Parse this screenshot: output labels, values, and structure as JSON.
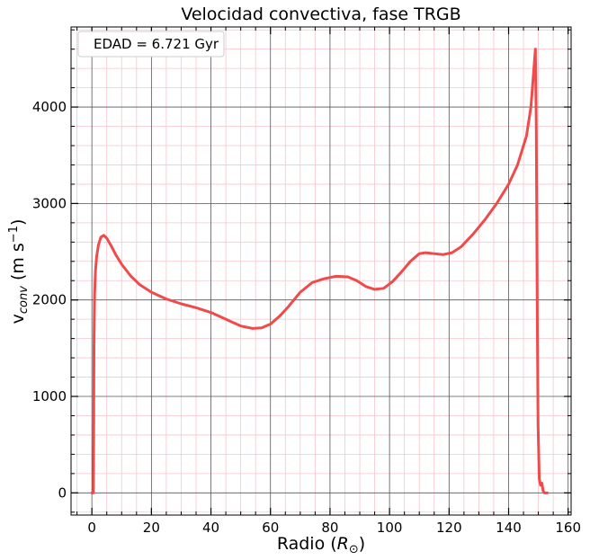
{
  "chart_data": {
    "type": "line",
    "title": "Velocidad convectiva, fase TRGB",
    "xlabel": "Radio (R⊙)",
    "ylabel": "v_conv (m s⁻¹)",
    "xlim": [
      -7,
      161
    ],
    "ylim": [
      -230,
      4830
    ],
    "xticks": [
      0,
      20,
      40,
      60,
      80,
      100,
      120,
      140,
      160
    ],
    "yticks": [
      0,
      1000,
      2000,
      3000,
      4000
    ],
    "grid": "major and minor",
    "legend": {
      "position": "top-left",
      "label": "EDAD = 6.721 Gyr"
    },
    "colors": {
      "line": "#f04a4a",
      "major_grid": "#555555",
      "minor_grid": "#f7c5cd"
    },
    "series": [
      {
        "x": [
          0.0,
          0.5,
          0.6,
          0.7,
          0.9,
          1.2,
          1.6,
          2.2,
          3.0,
          4.0,
          5.0,
          6.5,
          8.0,
          10.0,
          13.0,
          16.0,
          20.0,
          25.0,
          30.0,
          35.0,
          40.0,
          45.0,
          50.0,
          54.0,
          57.0,
          60.0,
          63.0,
          66.0,
          70.0,
          74.0,
          78.0,
          82.0,
          86.0,
          89.0,
          92.0,
          95.0,
          98.0,
          101.0,
          104.0,
          107.0,
          110.0,
          112.0,
          115.0,
          118.0,
          121.0,
          124.0,
          128.0,
          132.0,
          136.0,
          140.0,
          143.0,
          146.0,
          147.5,
          148.5,
          149.0,
          149.3,
          149.6,
          149.9,
          150.3,
          150.7,
          151.2,
          151.6,
          152.0,
          153.0
        ],
        "y": [
          0,
          0,
          600,
          1500,
          2050,
          2300,
          2450,
          2570,
          2650,
          2670,
          2640,
          2560,
          2470,
          2370,
          2250,
          2160,
          2080,
          2010,
          1960,
          1920,
          1870,
          1800,
          1730,
          1705,
          1710,
          1750,
          1830,
          1930,
          2080,
          2180,
          2220,
          2245,
          2240,
          2200,
          2140,
          2110,
          2120,
          2190,
          2290,
          2400,
          2480,
          2490,
          2480,
          2470,
          2490,
          2550,
          2680,
          2830,
          3000,
          3200,
          3400,
          3700,
          4000,
          4400,
          4600,
          3800,
          2000,
          700,
          150,
          80,
          100,
          20,
          0,
          0
        ]
      }
    ]
  }
}
